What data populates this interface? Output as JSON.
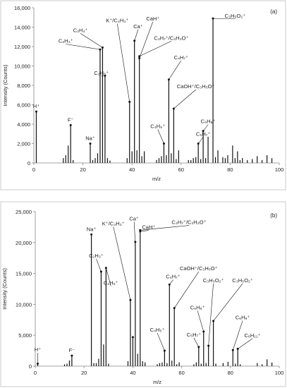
{
  "chart_data": [
    {
      "type": "bar",
      "panel_label": "(a)",
      "xlabel": "m/z",
      "ylabel": "Intensity (Counts)",
      "xlim": [
        0,
        100
      ],
      "ylim": [
        0,
        16000
      ],
      "x_ticks": [
        0,
        20,
        40,
        60,
        80,
        100
      ],
      "y_ticks": [
        0,
        2000,
        4000,
        6000,
        8000,
        10000,
        12000,
        14000,
        16000
      ],
      "y_tick_labels": [
        "0",
        "2,000",
        "4,000",
        "6,000",
        "8,000",
        "10,000",
        "12,000",
        "14,000",
        "16,000"
      ],
      "grid": false,
      "peaks": [
        {
          "x": 1,
          "y": 5300
        },
        {
          "x": 12,
          "y": 500
        },
        {
          "x": 13,
          "y": 800
        },
        {
          "x": 14,
          "y": 1800
        },
        {
          "x": 15,
          "y": 3900
        },
        {
          "x": 16,
          "y": 300
        },
        {
          "x": 23,
          "y": 2000
        },
        {
          "x": 24,
          "y": 300
        },
        {
          "x": 25,
          "y": 500
        },
        {
          "x": 26,
          "y": 1000
        },
        {
          "x": 27,
          "y": 11700
        },
        {
          "x": 28,
          "y": 11900
        },
        {
          "x": 29,
          "y": 9000
        },
        {
          "x": 30,
          "y": 500
        },
        {
          "x": 31,
          "y": 250
        },
        {
          "x": 38,
          "y": 500
        },
        {
          "x": 39,
          "y": 6300
        },
        {
          "x": 40,
          "y": 1200
        },
        {
          "x": 41,
          "y": 12600
        },
        {
          "x": 42,
          "y": 1300
        },
        {
          "x": 43,
          "y": 10800
        },
        {
          "x": 44,
          "y": 700
        },
        {
          "x": 45,
          "y": 1200
        },
        {
          "x": 50,
          "y": 300
        },
        {
          "x": 51,
          "y": 500
        },
        {
          "x": 52,
          "y": 700
        },
        {
          "x": 53,
          "y": 2000
        },
        {
          "x": 54,
          "y": 800
        },
        {
          "x": 55,
          "y": 8600
        },
        {
          "x": 56,
          "y": 1000
        },
        {
          "x": 57,
          "y": 5600
        },
        {
          "x": 58,
          "y": 400
        },
        {
          "x": 59,
          "y": 1300
        },
        {
          "x": 63,
          "y": 300
        },
        {
          "x": 64,
          "y": 300
        },
        {
          "x": 65,
          "y": 500
        },
        {
          "x": 66,
          "y": 600
        },
        {
          "x": 67,
          "y": 2000
        },
        {
          "x": 68,
          "y": 400
        },
        {
          "x": 69,
          "y": 3300
        },
        {
          "x": 70,
          "y": 500
        },
        {
          "x": 71,
          "y": 2700
        },
        {
          "x": 73,
          "y": 14900
        },
        {
          "x": 74,
          "y": 600
        },
        {
          "x": 75,
          "y": 1300
        },
        {
          "x": 77,
          "y": 600
        },
        {
          "x": 78,
          "y": 500
        },
        {
          "x": 79,
          "y": 800
        },
        {
          "x": 81,
          "y": 1800
        },
        {
          "x": 82,
          "y": 500
        },
        {
          "x": 83,
          "y": 1200
        },
        {
          "x": 84,
          "y": 300
        },
        {
          "x": 85,
          "y": 500
        },
        {
          "x": 87,
          "y": 300
        },
        {
          "x": 89,
          "y": 400
        },
        {
          "x": 91,
          "y": 700
        },
        {
          "x": 93,
          "y": 300
        },
        {
          "x": 95,
          "y": 800
        },
        {
          "x": 97,
          "y": 500
        }
      ],
      "annotations": [
        {
          "x": 1,
          "y": 5300,
          "text": "H⁺",
          "direct": true
        },
        {
          "x": 15,
          "y": 3900,
          "text": "F⁻",
          "direct": true
        },
        {
          "x": 23,
          "y": 2000,
          "text": "Na⁺",
          "direct": true
        },
        {
          "x": 27,
          "y": 11700,
          "text": "C₂H₃⁺",
          "tx": 13,
          "ty": 12400
        },
        {
          "x": 28,
          "y": 11900,
          "text": "C₂H₄⁺",
          "tx": 19,
          "ty": 13500
        },
        {
          "x": 29,
          "y": 9000,
          "text": "C₂H₅⁺",
          "tx": 27.5,
          "ty": 9100
        },
        {
          "x": 39,
          "y": 6300,
          "text": "K⁺/C₃H₃⁺",
          "tx": 34,
          "ty": 14500
        },
        {
          "x": 41,
          "y": 12600,
          "text": "Ca⁺",
          "tx": 42.5,
          "ty": 13900
        },
        {
          "x": 43,
          "y": 10800,
          "text": "CaH⁺",
          "tx": 48.5,
          "ty": 14700
        },
        {
          "x": 43,
          "y": 11000,
          "text": "C₃H₇⁺/C₂H₃O⁺",
          "tx": 56,
          "ty": 12700
        },
        {
          "x": 55,
          "y": 8600,
          "text": "C₄H₇⁺",
          "tx": 60,
          "ty": 10700
        },
        {
          "x": 57,
          "y": 5600,
          "text": "CaOH⁺/C₃H₅O⁺",
          "tx": 66,
          "ty": 7700
        },
        {
          "x": 53,
          "y": 2000,
          "text": "C₄H₅⁺",
          "tx": 50.5,
          "ty": 3600
        },
        {
          "x": 67,
          "y": 2000,
          "text": "C₅H₇⁺",
          "tx": 69,
          "ty": 2800
        },
        {
          "x": 69,
          "y": 3300,
          "text": "C₅H₉⁺",
          "tx": 71,
          "ty": 4100
        },
        {
          "x": 73,
          "y": 14900,
          "text": "C₃H₅O₂⁺",
          "tx": 82,
          "ty": 15000
        }
      ]
    },
    {
      "type": "bar",
      "panel_label": "(b)",
      "xlabel": "m/z",
      "ylabel": "Intensity (Counts)",
      "xlim": [
        0,
        100
      ],
      "ylim": [
        0,
        25000
      ],
      "x_ticks": [
        0,
        20,
        40,
        60,
        80,
        100
      ],
      "y_ticks": [
        0,
        5000,
        10000,
        15000,
        20000,
        25000
      ],
      "y_tick_labels": [
        "0",
        "5,000",
        "10,000",
        "15,000",
        "20,000",
        "25,000"
      ],
      "grid": false,
      "peaks": [
        {
          "x": 1,
          "y": 400
        },
        {
          "x": 12,
          "y": 300
        },
        {
          "x": 13,
          "y": 400
        },
        {
          "x": 14,
          "y": 900
        },
        {
          "x": 15,
          "y": 1700
        },
        {
          "x": 23,
          "y": 21300
        },
        {
          "x": 24,
          "y": 500
        },
        {
          "x": 25,
          "y": 500
        },
        {
          "x": 26,
          "y": 1200
        },
        {
          "x": 27,
          "y": 15300
        },
        {
          "x": 28,
          "y": 3500
        },
        {
          "x": 29,
          "y": 15900
        },
        {
          "x": 30,
          "y": 400
        },
        {
          "x": 38,
          "y": 800
        },
        {
          "x": 39,
          "y": 10700
        },
        {
          "x": 40,
          "y": 4700
        },
        {
          "x": 41,
          "y": 20100
        },
        {
          "x": 42,
          "y": 2000
        },
        {
          "x": 43,
          "y": 21800
        },
        {
          "x": 44,
          "y": 800
        },
        {
          "x": 45,
          "y": 600
        },
        {
          "x": 50,
          "y": 300
        },
        {
          "x": 51,
          "y": 500
        },
        {
          "x": 52,
          "y": 600
        },
        {
          "x": 53,
          "y": 2500
        },
        {
          "x": 54,
          "y": 500
        },
        {
          "x": 55,
          "y": 13200
        },
        {
          "x": 56,
          "y": 900
        },
        {
          "x": 57,
          "y": 9400
        },
        {
          "x": 58,
          "y": 300
        },
        {
          "x": 59,
          "y": 600
        },
        {
          "x": 65,
          "y": 300
        },
        {
          "x": 66,
          "y": 600
        },
        {
          "x": 67,
          "y": 3100
        },
        {
          "x": 68,
          "y": 400
        },
        {
          "x": 69,
          "y": 5600
        },
        {
          "x": 70,
          "y": 500
        },
        {
          "x": 71,
          "y": 3300
        },
        {
          "x": 73,
          "y": 7300
        },
        {
          "x": 74,
          "y": 400
        },
        {
          "x": 77,
          "y": 500
        },
        {
          "x": 79,
          "y": 700
        },
        {
          "x": 81,
          "y": 2600
        },
        {
          "x": 82,
          "y": 400
        },
        {
          "x": 83,
          "y": 2800
        },
        {
          "x": 84,
          "y": 300
        },
        {
          "x": 91,
          "y": 500
        },
        {
          "x": 93,
          "y": 300
        },
        {
          "x": 95,
          "y": 1100
        },
        {
          "x": 97,
          "y": 600
        }
      ],
      "annotations": [
        {
          "x": 1,
          "y": 400,
          "text": "H⁺",
          "tx": 1,
          "ty": 2400
        },
        {
          "x": 15,
          "y": 1700,
          "text": "F⁻",
          "direct": true
        },
        {
          "x": 23,
          "y": 21300,
          "text": "Na⁺",
          "direct": true
        },
        {
          "x": 27,
          "y": 15300,
          "text": "C₂H₃⁺",
          "tx": 25,
          "ty": 17600
        },
        {
          "x": 29,
          "y": 15900,
          "text": "C₂H₅⁺",
          "tx": 31,
          "ty": 13200
        },
        {
          "x": 39,
          "y": 10700,
          "text": "K⁺/C₃H₃⁺",
          "tx": 32,
          "ty": 22800
        },
        {
          "x": 41,
          "y": 20100,
          "text": "Ca⁺",
          "tx": 40.5,
          "ty": 23600
        },
        {
          "x": 43,
          "y": 21800,
          "text": "CaH⁺",
          "tx": 46.5,
          "ty": 22200
        },
        {
          "x": 43,
          "y": 22000,
          "text": "C₃H₇⁺/C₂H₃O⁺",
          "tx": 63,
          "ty": 23000
        },
        {
          "x": 40,
          "y": 4700,
          "text": "",
          "tx": 40,
          "ty": 4700
        },
        {
          "x": 55,
          "y": 13200,
          "text": "C₄H₇⁺",
          "tx": 56.5,
          "ty": 14200
        },
        {
          "x": 57,
          "y": 9400,
          "text": "CaOH⁺/C₃H₅O⁺",
          "tx": 67,
          "ty": 15500
        },
        {
          "x": 53,
          "y": 2500,
          "text": "C₄H₅⁺",
          "tx": 50,
          "ty": 5600
        },
        {
          "x": 67,
          "y": 3100,
          "text": "C₅H₇⁺",
          "tx": 65,
          "ty": 4800
        },
        {
          "x": 69,
          "y": 5600,
          "text": "C₅H₉⁺",
          "tx": 66.5,
          "ty": 9200
        },
        {
          "x": 71,
          "y": 3300,
          "text": "C₃H₃O₂⁺",
          "tx": 73,
          "ty": 13600
        },
        {
          "x": 73,
          "y": 7300,
          "text": "C₃H₅O₂⁺",
          "tx": 85,
          "ty": 13600
        },
        {
          "x": 81,
          "y": 2600,
          "text": "C₆H₉⁺",
          "tx": 85,
          "ty": 7600
        },
        {
          "x": 83,
          "y": 2800,
          "text": "C₆H₁₁⁺",
          "tx": 89,
          "ty": 4700
        }
      ]
    }
  ]
}
